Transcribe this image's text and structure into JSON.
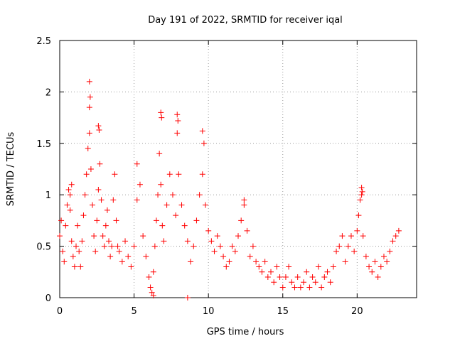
{
  "chart_data": {
    "type": "scatter",
    "title": "Day 191 of 2022, SRMTID for receiver iqal",
    "xlabel": "GPS time / hours",
    "ylabel": "SRMTID / TECUs",
    "xlim": [
      0,
      24
    ],
    "ylim": [
      0,
      2.5
    ],
    "xticks": [
      0,
      5,
      10,
      15,
      20
    ],
    "xtick_labels": [
      "0",
      "5",
      "10",
      "15",
      "20"
    ],
    "yticks": [
      0,
      0.5,
      1,
      1.5,
      2,
      2.5
    ],
    "ytick_labels": [
      "0",
      "0.5",
      "1",
      "1.5",
      "2",
      "2.5"
    ],
    "grid": true,
    "marker": "+",
    "color": "#ff0000",
    "series": [
      {
        "name": "SRMTID",
        "x": [
          0.0,
          0.1,
          0.2,
          0.3,
          0.4,
          0.5,
          0.6,
          0.7,
          0.8,
          0.9,
          1.0,
          1.1,
          1.2,
          1.3,
          1.4,
          1.5,
          1.6,
          1.7,
          1.8,
          1.9,
          2.0,
          2.1,
          2.2,
          2.3,
          2.4,
          2.5,
          2.6,
          2.7,
          2.8,
          2.9,
          3.0,
          3.1,
          3.2,
          3.3,
          3.4,
          3.5,
          3.6,
          3.7,
          3.8,
          3.9,
          4.0,
          4.2,
          4.4,
          4.6,
          4.8,
          5.0,
          5.2,
          5.4,
          5.6,
          5.8,
          6.0,
          6.1,
          6.2,
          6.3,
          6.4,
          6.5,
          6.6,
          6.7,
          6.8,
          6.9,
          7.0,
          7.2,
          7.4,
          7.6,
          7.8,
          7.9,
          8.0,
          8.2,
          8.4,
          8.6,
          8.8,
          9.0,
          9.2,
          9.4,
          9.6,
          9.7,
          9.8,
          10.0,
          10.2,
          10.4,
          10.6,
          10.8,
          11.0,
          11.2,
          11.4,
          11.6,
          11.8,
          12.0,
          12.2,
          12.4,
          12.6,
          12.8,
          13.0,
          13.2,
          13.4,
          13.6,
          13.8,
          14.0,
          14.2,
          14.4,
          14.6,
          14.8,
          15.0,
          15.2,
          15.4,
          15.6,
          15.8,
          16.0,
          16.2,
          16.4,
          16.6,
          16.8,
          17.0,
          17.2,
          17.4,
          17.6,
          17.8,
          18.0,
          18.2,
          18.4,
          18.6,
          18.8,
          19.0,
          19.2,
          19.4,
          19.6,
          19.8,
          20.0,
          20.1,
          20.2,
          20.3,
          20.4,
          20.6,
          20.8,
          21.0,
          21.2,
          21.4,
          21.6,
          21.8,
          22.0,
          22.2,
          22.4,
          22.6,
          22.8,
          2.0,
          2.05,
          2.0,
          6.8,
          6.85,
          7.9,
          7.95,
          9.6,
          2.6,
          2.65,
          0.8,
          0.7,
          12.4,
          20.3,
          20.35,
          5.2,
          8.6,
          6.3
        ],
        "y": [
          0.6,
          0.75,
          0.45,
          0.35,
          0.7,
          0.9,
          1.05,
          0.85,
          0.55,
          0.4,
          0.3,
          0.5,
          0.7,
          0.45,
          0.3,
          0.55,
          0.8,
          1.0,
          1.2,
          1.45,
          1.6,
          1.25,
          0.9,
          0.6,
          0.45,
          0.75,
          1.05,
          1.3,
          0.95,
          0.6,
          0.5,
          0.7,
          0.85,
          0.55,
          0.4,
          0.5,
          0.95,
          1.2,
          0.75,
          0.5,
          0.45,
          0.35,
          0.55,
          0.4,
          0.3,
          0.5,
          0.95,
          1.1,
          0.6,
          0.4,
          0.2,
          0.1,
          0.05,
          0.25,
          0.5,
          0.75,
          1.0,
          1.4,
          1.1,
          0.7,
          0.55,
          0.9,
          1.2,
          1.0,
          0.8,
          1.6,
          1.2,
          0.9,
          0.7,
          0.55,
          0.35,
          0.5,
          0.75,
          1.0,
          1.2,
          1.5,
          0.9,
          0.65,
          0.55,
          0.45,
          0.6,
          0.5,
          0.4,
          0.3,
          0.35,
          0.5,
          0.45,
          0.6,
          0.75,
          0.9,
          0.65,
          0.4,
          0.5,
          0.35,
          0.3,
          0.25,
          0.35,
          0.2,
          0.25,
          0.15,
          0.3,
          0.2,
          0.1,
          0.2,
          0.3,
          0.15,
          0.1,
          0.2,
          0.1,
          0.15,
          0.25,
          0.1,
          0.2,
          0.15,
          0.3,
          0.1,
          0.2,
          0.25,
          0.15,
          0.3,
          0.45,
          0.5,
          0.6,
          0.35,
          0.5,
          0.6,
          0.45,
          0.65,
          0.8,
          0.95,
          1.0,
          0.6,
          0.4,
          0.3,
          0.25,
          0.35,
          0.2,
          0.3,
          0.4,
          0.35,
          0.45,
          0.55,
          0.6,
          0.65,
          2.1,
          1.95,
          1.85,
          1.8,
          1.75,
          1.78,
          1.72,
          1.62,
          1.67,
          1.63,
          1.1,
          1.0,
          0.95,
          1.07,
          1.03,
          1.3,
          0.0,
          0.02
        ]
      }
    ]
  }
}
